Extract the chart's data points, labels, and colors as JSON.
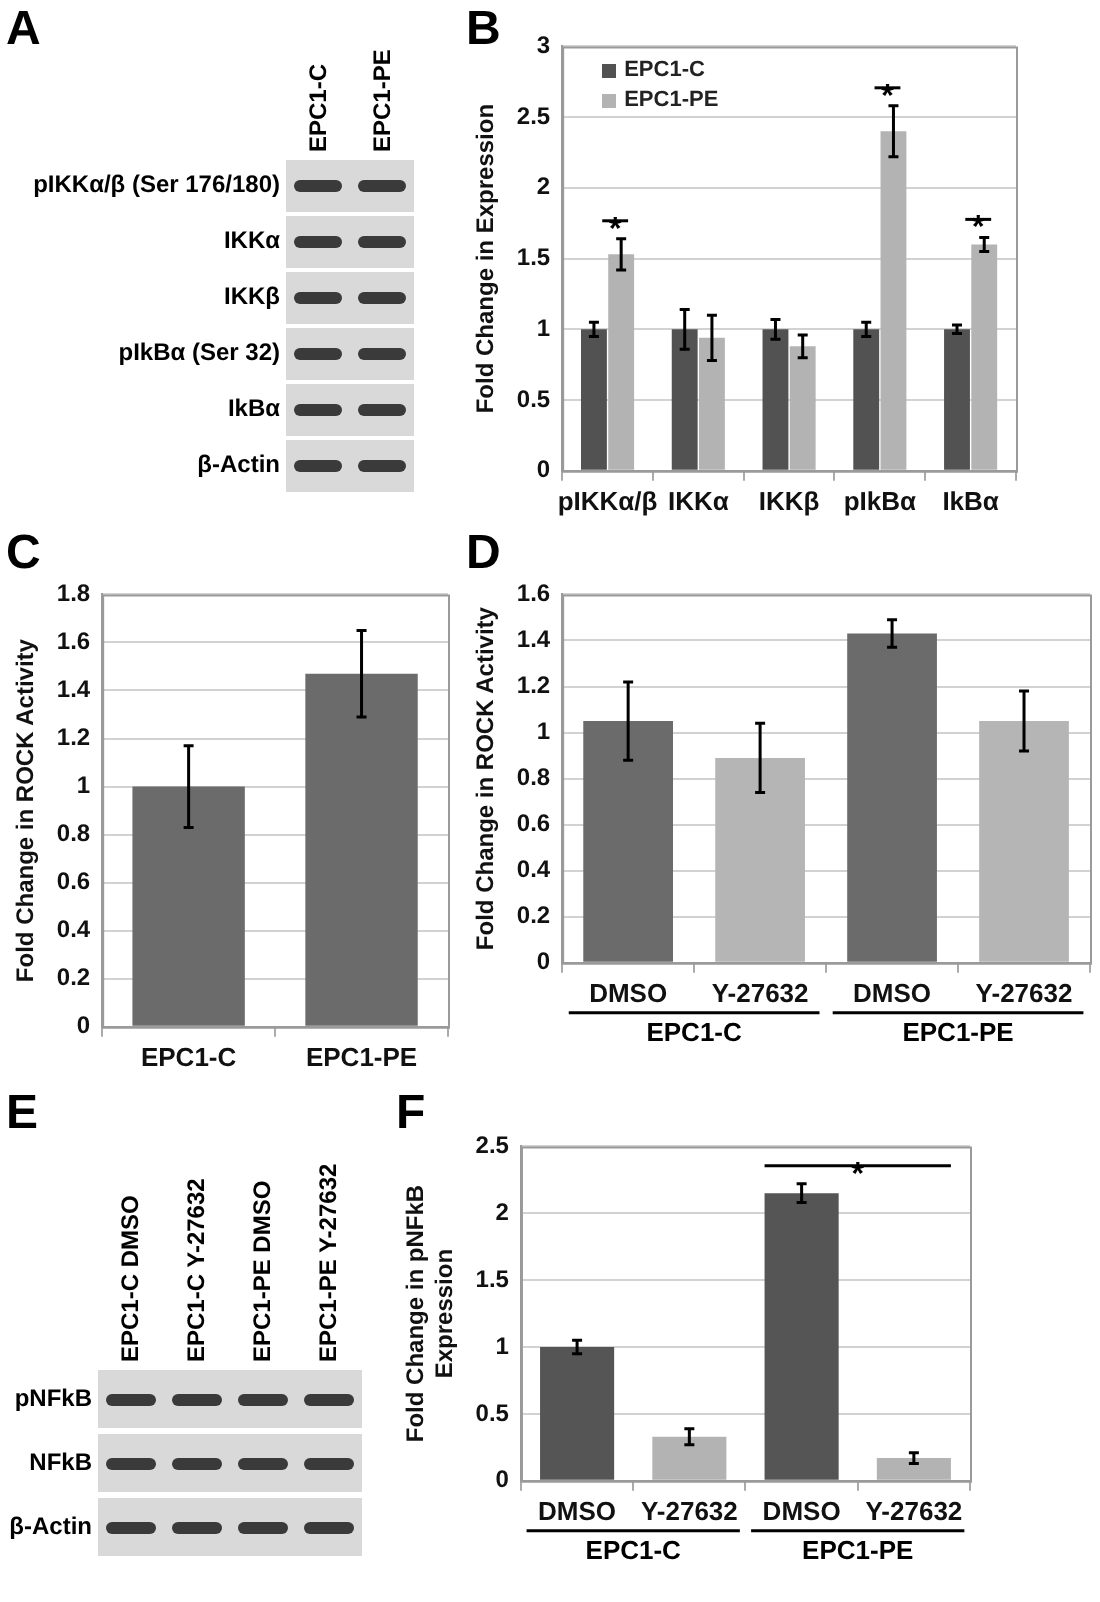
{
  "chart_data": [
    {
      "type": "other",
      "title": "A",
      "categories": [
        "EPC1-C",
        "EPC1-PE"
      ],
      "y_categories": [
        "pIKKα/β (Ser 176/180)",
        "IKKα",
        "IKKβ",
        "pIkBα (Ser 32)",
        "IkBα",
        "β-Actin"
      ]
    },
    {
      "type": "bar",
      "title": "B",
      "ylabel": "Fold Change in Expression",
      "categories": [
        "pIKKα/β",
        "IKKα",
        "IKKβ",
        "pIkBα",
        "IkBα"
      ],
      "series": [
        {
          "name": "EPC1-C",
          "color": "#525252",
          "values": [
            1,
            1,
            1,
            1,
            1
          ],
          "errors": [
            0.05,
            0.14,
            0.07,
            0.05,
            0.03
          ]
        },
        {
          "name": "EPC1-PE",
          "color": "#b3b3b3",
          "values": [
            1.53,
            0.94,
            0.88,
            2.4,
            1.6
          ],
          "errors": [
            0.11,
            0.16,
            0.08,
            0.18,
            0.05
          ]
        }
      ],
      "ylim": [
        0,
        3
      ],
      "yticks": [
        0,
        0.5,
        1,
        1.5,
        2,
        2.5,
        3
      ],
      "grid": "y",
      "legend": "top left",
      "annotations": [
        "*",
        "*",
        "*"
      ]
    },
    {
      "type": "bar",
      "title": "C",
      "ylabel": "Fold Change in ROCK Activity",
      "categories": [
        "EPC1-C",
        "EPC1-PE"
      ],
      "values": [
        1,
        1.47
      ],
      "errors": [
        0.17,
        0.18
      ],
      "color": "#6b6b6b",
      "ylim": [
        0,
        1.8
      ],
      "yticks": [
        0,
        0.2,
        0.4,
        0.6,
        0.8,
        1,
        1.2,
        1.4,
        1.6,
        1.8
      ],
      "grid": "y"
    },
    {
      "type": "bar",
      "title": "D",
      "ylabel": "Fold Change in ROCK Activity",
      "categories": [
        "DMSO",
        "Y-27632",
        "DMSO",
        "Y-27632"
      ],
      "values": [
        1.05,
        0.89,
        1.43,
        1.05
      ],
      "errors": [
        0.17,
        0.15,
        0.06,
        0.13
      ],
      "colors": [
        "#6b6b6b",
        "#b5b5b5",
        "#6b6b6b",
        "#b5b5b5"
      ],
      "ylim": [
        0,
        1.6
      ],
      "yticks": [
        0,
        0.2,
        0.4,
        0.6,
        0.8,
        1,
        1.2,
        1.4,
        1.6
      ],
      "grid": "y",
      "annotations": [
        "EPC1-C",
        "EPC1-PE"
      ]
    },
    {
      "type": "other",
      "title": "E",
      "categories": [
        "EPC1-C DMSO",
        "EPC1-C Y-27632",
        "EPC1-PE DMSO",
        "EPC1-PE Y-27632"
      ],
      "y_categories": [
        "pNFkB",
        "NFkB",
        "β-Actin"
      ]
    },
    {
      "type": "bar",
      "title": "F",
      "ylabel": "Fold Change in pNFkB Expression",
      "categories": [
        "DMSO",
        "Y-27632",
        "DMSO",
        "Y-27632"
      ],
      "values": [
        1,
        0.33,
        2.15,
        0.17
      ],
      "errors": [
        0.05,
        0.06,
        0.07,
        0.04
      ],
      "colors": [
        "#555555",
        "#b3b3b3",
        "#555555",
        "#b3b3b3"
      ],
      "ylim": [
        0,
        2.5
      ],
      "yticks": [
        0,
        0.5,
        1,
        1.5,
        2,
        2.5
      ],
      "grid": "y",
      "annotations": [
        "*",
        "EPC1-C",
        "EPC1-PE"
      ]
    }
  ]
}
